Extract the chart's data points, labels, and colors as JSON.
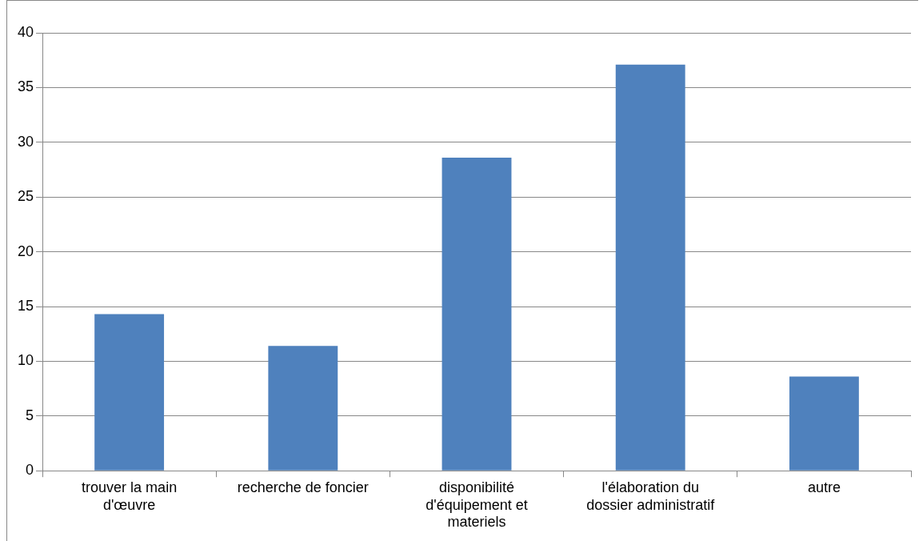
{
  "chart_data": {
    "type": "bar",
    "categories": [
      "trouver la main d'œuvre",
      "recherche de foncier",
      "disponibilité d'équipement et materiels",
      "l'élaboration du dossier administratif",
      "autre"
    ],
    "values": [
      14.3,
      11.4,
      28.6,
      37.1,
      8.6
    ],
    "color": "#4f81bd",
    "ylim": [
      0,
      40
    ],
    "yticks": [
      0,
      5,
      10,
      15,
      20,
      25,
      30,
      35,
      40
    ],
    "grid": "y"
  }
}
